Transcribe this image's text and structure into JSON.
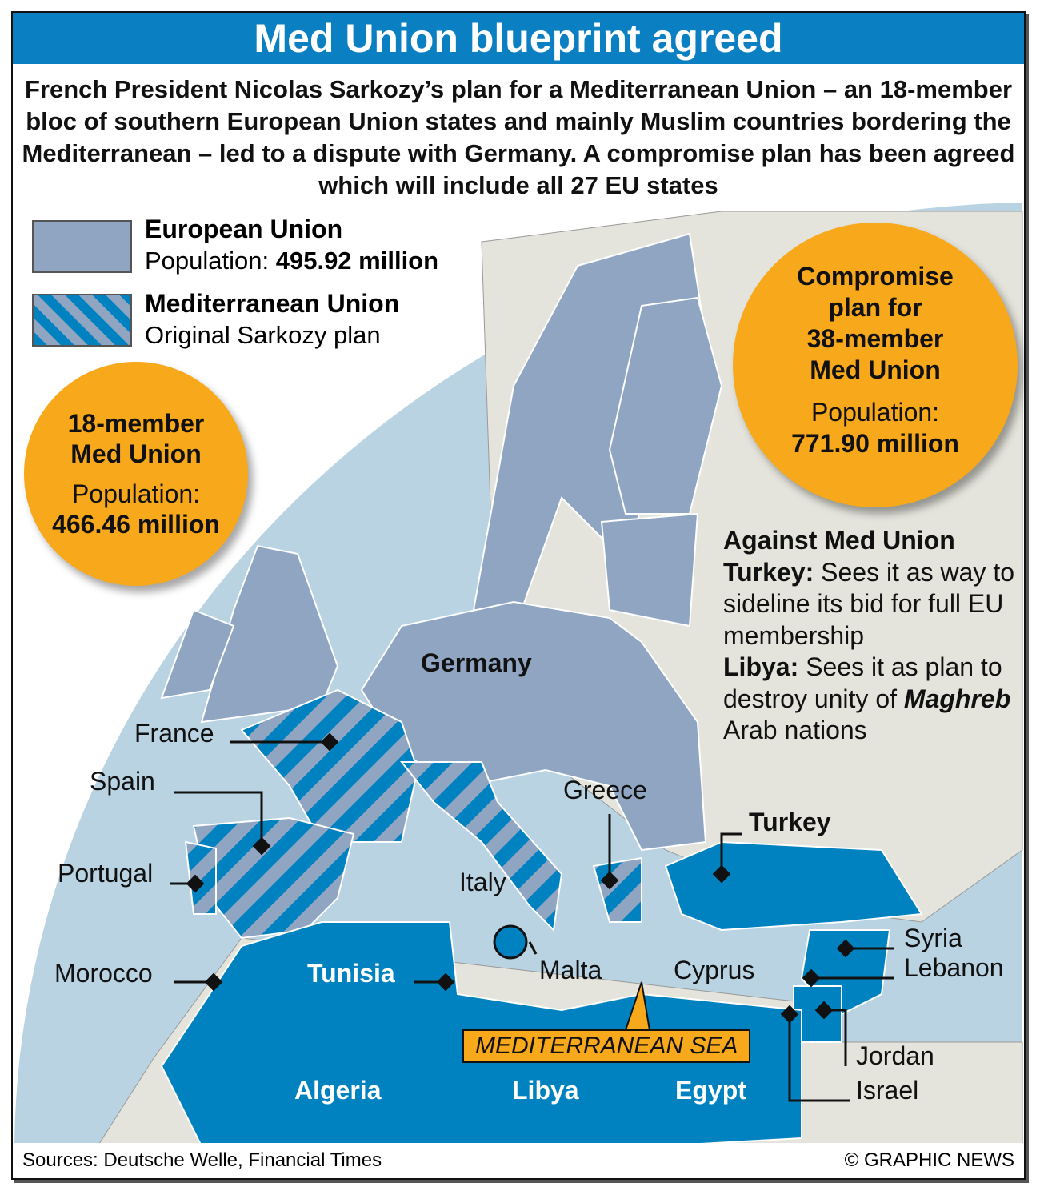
{
  "header": {
    "title": "Med Union blueprint agreed"
  },
  "intro": {
    "text": "French President Nicolas Sarkozy’s plan for a Mediterranean Union – an 18-member bloc of southern European Union states and mainly Muslim countries bordering the Mediterranean – led to a dispute with Germany. A compromise plan has been agreed which will include all 27 EU states"
  },
  "legend": [
    {
      "title": "European Union",
      "sub_prefix": "Population: ",
      "sub_value": "495.92 million",
      "color": "#8fa5c2"
    },
    {
      "title": "Mediterranean Union",
      "sub": "Original Sarkozy plan",
      "color": "#0082c0"
    }
  ],
  "circle_left": {
    "title1": "18-member",
    "title2": "Med Union",
    "pop_label": "Population:",
    "pop_value": "466.46 million"
  },
  "circle_right": {
    "title1": "Compromise",
    "title2": "plan for",
    "title3": "38-member",
    "title4": "Med Union",
    "pop_label": "Population:",
    "pop_value": "771.90 million"
  },
  "against": {
    "title": "Against Med Union",
    "turkey_label": "Turkey:",
    "turkey_text": " Sees it as way to sideline its bid for full EU membership",
    "libya_label": "Libya:",
    "libya_text": " Sees it as plan to destroy unity of ",
    "maghreb": "Maghreb",
    "libya_end": " Arab nations"
  },
  "countries": {
    "germany": "Germany",
    "france": "France",
    "spain": "Spain",
    "portugal": "Portugal",
    "morocco": "Morocco",
    "tunisia": "Tunisia",
    "italy": "Italy",
    "malta": "Malta",
    "greece": "Greece",
    "turkey": "Turkey",
    "cyprus": "Cyprus",
    "syria": "Syria",
    "lebanon": "Lebanon",
    "jordan": "Jordan",
    "israel": "Israel",
    "algeria": "Algeria",
    "libya": "Libya",
    "egypt": "Egypt"
  },
  "sea": "MEDITERRANEAN SEA",
  "footer": {
    "sources": "Sources: Deutsche Welle, Financial Times",
    "credit": "© GRAPHIC NEWS"
  },
  "colors": {
    "header": "#0a7fc2",
    "sea": "#b9d3e3",
    "land": "#e4e4dc",
    "eu": "#8fa5c2",
    "med_union": "#0082c0",
    "highlight": "#f7a81b"
  }
}
